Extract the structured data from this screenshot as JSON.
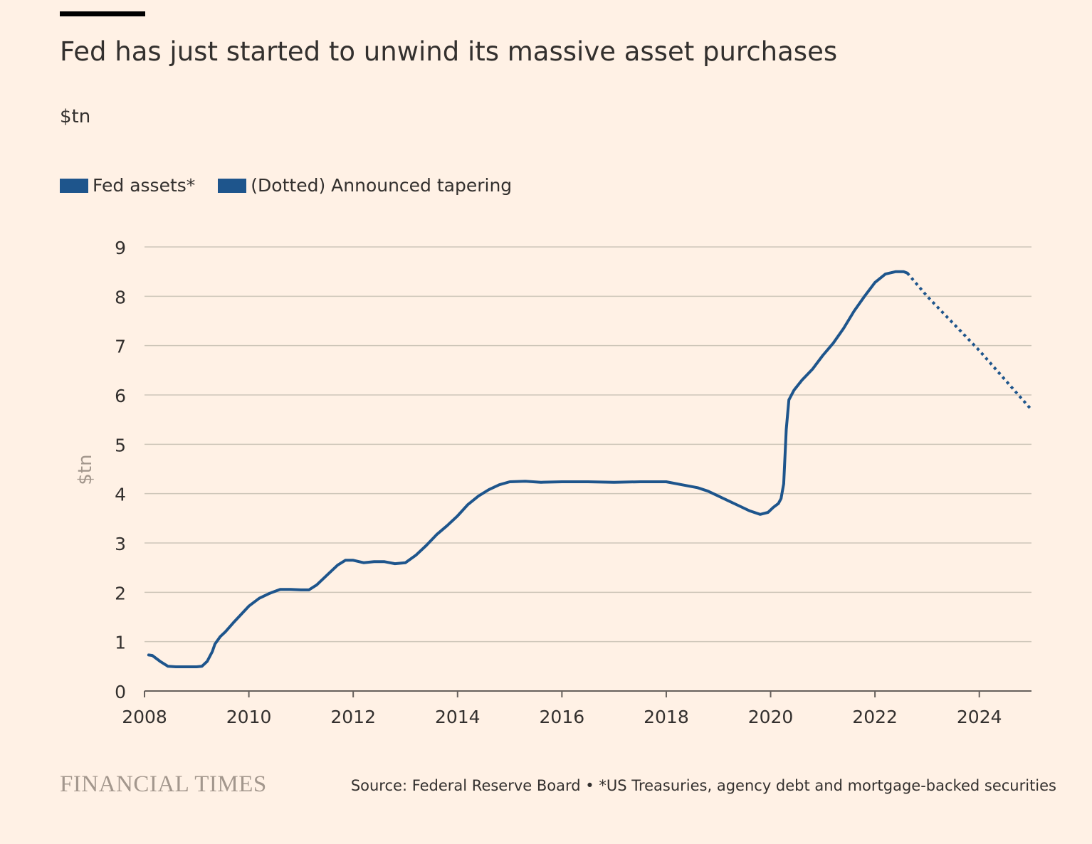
{
  "header": {
    "title": "Fed has just started to unwind its massive asset purchases",
    "subtitle": "$tn"
  },
  "legend": {
    "items": [
      {
        "label": "Fed assets*",
        "color": "#1e558c"
      },
      {
        "label": "(Dotted) Announced tapering",
        "color": "#1e558c"
      }
    ]
  },
  "footer": {
    "logo": "FINANCIAL TIMES",
    "source": "Source: Federal Reserve Board • *US Treasuries, agency debt and mortgage-backed securities"
  },
  "chart_data": {
    "type": "line",
    "ylabel": "$tn",
    "xlim": [
      2008,
      2025
    ],
    "ylim": [
      0,
      9
    ],
    "x_ticks": [
      "2008",
      "2010",
      "2012",
      "2014",
      "2016",
      "2018",
      "2020",
      "2022",
      "2024"
    ],
    "y_ticks": [
      "0",
      "1",
      "2",
      "3",
      "4",
      "5",
      "6",
      "7",
      "8",
      "9"
    ],
    "grid": true,
    "legend_position": "top-left",
    "series": [
      {
        "name": "Fed assets*",
        "color": "#1e558c",
        "style": "solid",
        "points": [
          [
            2008.08,
            0.73
          ],
          [
            2008.15,
            0.72
          ],
          [
            2008.3,
            0.6
          ],
          [
            2008.45,
            0.5
          ],
          [
            2008.6,
            0.49
          ],
          [
            2008.8,
            0.49
          ],
          [
            2009.0,
            0.49
          ],
          [
            2009.1,
            0.5
          ],
          [
            2009.2,
            0.6
          ],
          [
            2009.3,
            0.8
          ],
          [
            2009.35,
            0.95
          ],
          [
            2009.45,
            1.1
          ],
          [
            2009.55,
            1.2
          ],
          [
            2009.7,
            1.38
          ],
          [
            2009.85,
            1.55
          ],
          [
            2010.0,
            1.72
          ],
          [
            2010.2,
            1.88
          ],
          [
            2010.4,
            1.98
          ],
          [
            2010.6,
            2.06
          ],
          [
            2010.8,
            2.06
          ],
          [
            2011.0,
            2.05
          ],
          [
            2011.15,
            2.05
          ],
          [
            2011.3,
            2.15
          ],
          [
            2011.5,
            2.35
          ],
          [
            2011.7,
            2.55
          ],
          [
            2011.85,
            2.65
          ],
          [
            2012.0,
            2.65
          ],
          [
            2012.2,
            2.6
          ],
          [
            2012.4,
            2.62
          ],
          [
            2012.6,
            2.62
          ],
          [
            2012.8,
            2.58
          ],
          [
            2013.0,
            2.6
          ],
          [
            2013.2,
            2.75
          ],
          [
            2013.4,
            2.95
          ],
          [
            2013.6,
            3.17
          ],
          [
            2013.8,
            3.35
          ],
          [
            2014.0,
            3.55
          ],
          [
            2014.2,
            3.78
          ],
          [
            2014.4,
            3.95
          ],
          [
            2014.6,
            4.08
          ],
          [
            2014.8,
            4.18
          ],
          [
            2015.0,
            4.24
          ],
          [
            2015.3,
            4.25
          ],
          [
            2015.6,
            4.23
          ],
          [
            2016.0,
            4.24
          ],
          [
            2016.5,
            4.24
          ],
          [
            2017.0,
            4.23
          ],
          [
            2017.5,
            4.24
          ],
          [
            2017.8,
            4.24
          ],
          [
            2018.0,
            4.24
          ],
          [
            2018.3,
            4.18
          ],
          [
            2018.6,
            4.12
          ],
          [
            2018.8,
            4.05
          ],
          [
            2019.0,
            3.95
          ],
          [
            2019.2,
            3.85
          ],
          [
            2019.4,
            3.75
          ],
          [
            2019.6,
            3.65
          ],
          [
            2019.8,
            3.58
          ],
          [
            2019.95,
            3.62
          ],
          [
            2020.05,
            3.72
          ],
          [
            2020.15,
            3.8
          ],
          [
            2020.2,
            3.9
          ],
          [
            2020.25,
            4.2
          ],
          [
            2020.3,
            5.3
          ],
          [
            2020.35,
            5.9
          ],
          [
            2020.45,
            6.1
          ],
          [
            2020.6,
            6.3
          ],
          [
            2020.8,
            6.52
          ],
          [
            2021.0,
            6.8
          ],
          [
            2021.2,
            7.05
          ],
          [
            2021.4,
            7.35
          ],
          [
            2021.6,
            7.7
          ],
          [
            2021.8,
            8.0
          ],
          [
            2022.0,
            8.28
          ],
          [
            2022.2,
            8.45
          ],
          [
            2022.4,
            8.5
          ],
          [
            2022.55,
            8.5
          ],
          [
            2022.62,
            8.47
          ]
        ]
      },
      {
        "name": "(Dotted) Announced tapering",
        "color": "#1e558c",
        "style": "dotted",
        "points": [
          [
            2022.62,
            8.47
          ],
          [
            2023.0,
            8.0
          ],
          [
            2024.0,
            6.9
          ],
          [
            2025.0,
            5.7
          ]
        ]
      }
    ]
  }
}
